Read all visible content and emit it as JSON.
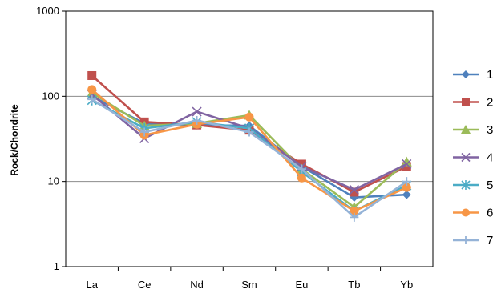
{
  "chart_data": {
    "type": "line",
    "title": "",
    "xlabel": "",
    "ylabel": "Rock/Chondrite",
    "yscale": "log",
    "ylim": [
      1,
      1000
    ],
    "yticks": [
      "1",
      "10",
      "100",
      "1000"
    ],
    "grid": "horizontal major lines",
    "legend": "right",
    "categories": [
      "La",
      "Ce",
      "Nd",
      "Sm",
      "Eu",
      "Tb",
      "Yb"
    ],
    "series": [
      {
        "name": "1",
        "color": "#4f81bd",
        "marker": "diamond",
        "values": [
          100,
          48,
          46,
          45,
          15,
          6.5,
          7
        ]
      },
      {
        "name": "2",
        "color": "#c0504d",
        "marker": "square",
        "values": [
          175,
          50,
          46,
          40,
          16,
          7.5,
          15
        ]
      },
      {
        "name": "3",
        "color": "#9bbb59",
        "marker": "triangle",
        "values": [
          110,
          45,
          48,
          60,
          14,
          5.0,
          17
        ]
      },
      {
        "name": "4",
        "color": "#8064a2",
        "marker": "x",
        "values": [
          105,
          32,
          66,
          42,
          15,
          8.0,
          16
        ]
      },
      {
        "name": "5",
        "color": "#4bacc6",
        "marker": "star",
        "values": [
          90,
          42,
          50,
          42,
          13,
          4.5,
          9
        ]
      },
      {
        "name": "6",
        "color": "#f79646",
        "marker": "circle",
        "values": [
          120,
          35,
          47,
          57,
          11,
          4.5,
          8.5
        ]
      },
      {
        "name": "7",
        "color": "#95b3d7",
        "marker": "plus",
        "values": [
          92,
          38,
          52,
          38,
          14,
          3.8,
          10
        ]
      }
    ]
  }
}
